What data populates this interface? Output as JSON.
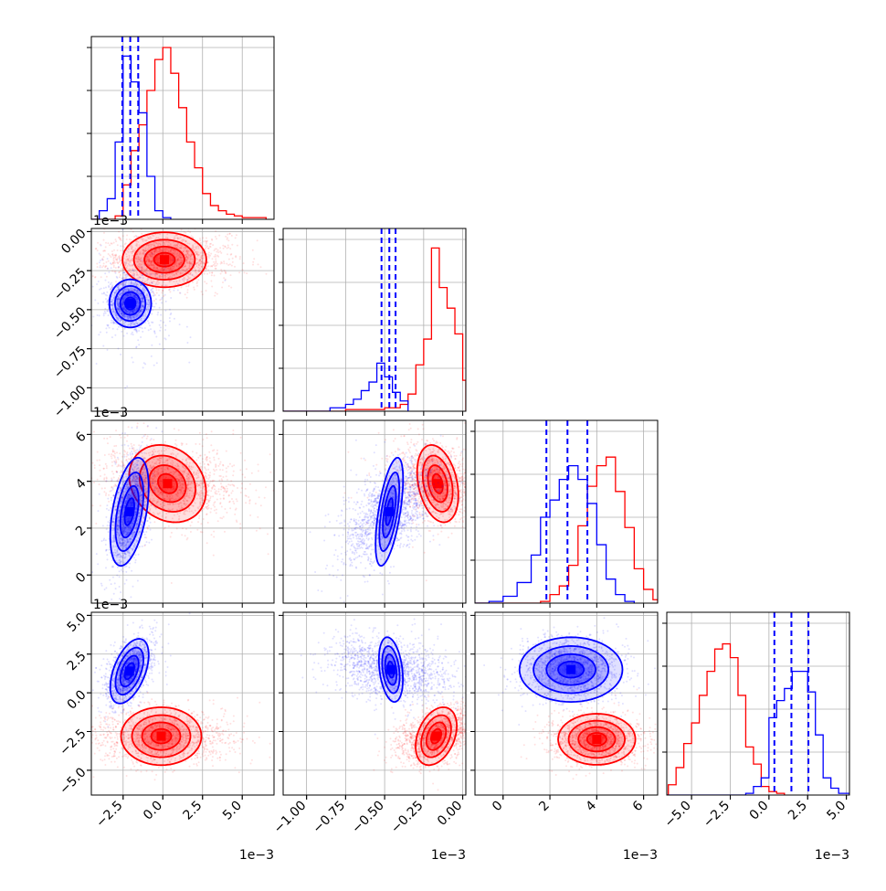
{
  "chart_data": {
    "type": "corner",
    "series": [
      {
        "color": "#0000ff"
      },
      {
        "color": "#ff0000"
      }
    ],
    "colors": {
      "blue": "#0000ff",
      "red": "#ff0000",
      "grid": "#b0b0b0"
    },
    "grid": true,
    "offset_label": "1e−3",
    "parameters": [
      {
        "lim": [
          -4.5,
          7.0
        ],
        "ticks": [
          -2.5,
          0.0,
          2.5,
          5.0
        ],
        "tick_labels": [
          "−2.5",
          "0.0",
          "2.5",
          "5.0"
        ]
      },
      {
        "lim": [
          -1.15,
          0.02
        ],
        "ticks": [
          -1.0,
          -0.75,
          -0.5,
          -0.25,
          0.0
        ],
        "tick_labels": [
          "−1.00",
          "−0.75",
          "−0.50",
          "−0.25",
          "0.00"
        ]
      },
      {
        "lim": [
          -1.2,
          6.6
        ],
        "ticks": [
          0,
          2,
          4,
          6
        ],
        "tick_labels": [
          "0",
          "2",
          "4",
          "6"
        ]
      },
      {
        "lim": [
          -6.6,
          5.2
        ],
        "ticks": [
          -5.0,
          -2.5,
          0.0,
          2.5,
          5.0
        ],
        "tick_labels": [
          "−5.0",
          "−2.5",
          "0.0",
          "2.5",
          "5.0"
        ]
      }
    ],
    "quantiles_blue": [
      [
        -2.55,
        -2.05,
        -1.55
      ],
      [
        -0.52,
        -0.47,
        -0.43
      ],
      [
        1.85,
        2.75,
        3.6
      ],
      [
        0.35,
        1.45,
        2.55
      ]
    ],
    "marginals": {
      "blue": [
        [
          [
            -4.5,
            0.0
          ],
          [
            -4.0,
            0.05
          ],
          [
            -3.5,
            0.12
          ],
          [
            -3.0,
            0.45
          ],
          [
            -2.5,
            0.95
          ],
          [
            -2.0,
            0.8
          ],
          [
            -1.5,
            0.62
          ],
          [
            -1.0,
            0.25
          ],
          [
            -0.5,
            0.05
          ],
          [
            0.0,
            0.01
          ],
          [
            0.5,
            0.0
          ]
        ],
        [
          [
            -1.15,
            0.0
          ],
          [
            -0.95,
            0.0
          ],
          [
            -0.85,
            0.02
          ],
          [
            -0.75,
            0.04
          ],
          [
            -0.7,
            0.07
          ],
          [
            -0.65,
            0.12
          ],
          [
            -0.6,
            0.17
          ],
          [
            -0.55,
            0.28
          ],
          [
            -0.5,
            0.2
          ],
          [
            -0.45,
            0.11
          ],
          [
            -0.4,
            0.06
          ],
          [
            -0.35,
            0.0
          ]
        ],
        [
          [
            -1.2,
            0.0
          ],
          [
            -0.6,
            0.01
          ],
          [
            0.0,
            0.04
          ],
          [
            0.6,
            0.12
          ],
          [
            1.2,
            0.28
          ],
          [
            1.6,
            0.5
          ],
          [
            2.0,
            0.6
          ],
          [
            2.4,
            0.72
          ],
          [
            2.8,
            0.8
          ],
          [
            3.2,
            0.72
          ],
          [
            3.6,
            0.58
          ],
          [
            4.0,
            0.34
          ],
          [
            4.4,
            0.14
          ],
          [
            4.8,
            0.05
          ],
          [
            5.2,
            0.01
          ],
          [
            5.6,
            0.0
          ]
        ],
        [
          [
            -6.6,
            0.0
          ],
          [
            -1.5,
            0.01
          ],
          [
            -1.0,
            0.05
          ],
          [
            -0.5,
            0.1
          ],
          [
            0.0,
            0.45
          ],
          [
            0.5,
            0.55
          ],
          [
            1.0,
            0.62
          ],
          [
            1.5,
            0.72
          ],
          [
            2.0,
            0.72
          ],
          [
            2.5,
            0.6
          ],
          [
            3.0,
            0.35
          ],
          [
            3.5,
            0.1
          ],
          [
            4.0,
            0.04
          ],
          [
            4.5,
            0.01
          ],
          [
            5.2,
            0.0
          ]
        ]
      ],
      "red": [
        [
          [
            -4.5,
            0.0
          ],
          [
            -3.0,
            0.02
          ],
          [
            -2.5,
            0.2
          ],
          [
            -2.0,
            0.4
          ],
          [
            -1.5,
            0.55
          ],
          [
            -1.0,
            0.75
          ],
          [
            -0.5,
            0.93
          ],
          [
            0.0,
            1.0
          ],
          [
            0.5,
            0.85
          ],
          [
            1.0,
            0.65
          ],
          [
            1.5,
            0.45
          ],
          [
            2.0,
            0.3
          ],
          [
            2.5,
            0.15
          ],
          [
            3.0,
            0.08
          ],
          [
            3.5,
            0.05
          ],
          [
            4.0,
            0.03
          ],
          [
            4.5,
            0.02
          ],
          [
            5.0,
            0.01
          ],
          [
            5.5,
            0.01
          ],
          [
            6.5,
            0.0
          ]
        ],
        [
          [
            -1.15,
            0.0
          ],
          [
            -0.9,
            0.0
          ],
          [
            -0.75,
            0.01
          ],
          [
            -0.5,
            0.02
          ],
          [
            -0.4,
            0.04
          ],
          [
            -0.35,
            0.1
          ],
          [
            -0.3,
            0.27
          ],
          [
            -0.25,
            0.42
          ],
          [
            -0.2,
            0.95
          ],
          [
            -0.15,
            0.72
          ],
          [
            -0.1,
            0.6
          ],
          [
            -0.05,
            0.45
          ],
          [
            0.0,
            0.18
          ],
          [
            0.02,
            0.0
          ]
        ],
        [
          [
            -1.2,
            0.0
          ],
          [
            1.6,
            0.01
          ],
          [
            2.0,
            0.05
          ],
          [
            2.4,
            0.1
          ],
          [
            2.8,
            0.22
          ],
          [
            3.2,
            0.45
          ],
          [
            3.6,
            0.68
          ],
          [
            4.0,
            0.8
          ],
          [
            4.4,
            0.85
          ],
          [
            4.8,
            0.65
          ],
          [
            5.2,
            0.44
          ],
          [
            5.6,
            0.2
          ],
          [
            6.0,
            0.08
          ],
          [
            6.4,
            0.02
          ],
          [
            6.6,
            0.0
          ]
        ],
        [
          [
            -6.6,
            0.0
          ],
          [
            -6.5,
            0.06
          ],
          [
            -6.0,
            0.16
          ],
          [
            -5.5,
            0.3
          ],
          [
            -5.0,
            0.42
          ],
          [
            -4.5,
            0.58
          ],
          [
            -4.0,
            0.72
          ],
          [
            -3.5,
            0.85
          ],
          [
            -3.0,
            0.88
          ],
          [
            -2.5,
            0.8
          ],
          [
            -2.0,
            0.58
          ],
          [
            -1.5,
            0.28
          ],
          [
            -1.0,
            0.18
          ],
          [
            -0.5,
            0.05
          ],
          [
            0.0,
            0.02
          ],
          [
            0.5,
            0.01
          ],
          [
            1.0,
            0.0
          ]
        ]
      ]
    },
    "joint": {
      "blue": [
        {
          "row": 1,
          "col": 0,
          "mx": -2.05,
          "my": -0.46,
          "sx": 0.6,
          "sy": 0.07,
          "rho": 0.0,
          "spread": [
            1.0,
            1.0,
            2.6
          ]
        },
        {
          "row": 2,
          "col": 0,
          "mx": -2.1,
          "my": 2.7,
          "sx": 0.55,
          "sy": 1.05,
          "rho": 0.45,
          "spread": [
            1.0,
            1.0,
            1.6
          ]
        },
        {
          "row": 2,
          "col": 1,
          "mx": -0.47,
          "my": 2.7,
          "sx": 0.04,
          "sy": 1.05,
          "rho": 0.6,
          "spread": [
            3.5,
            1.0,
            1.5
          ]
        },
        {
          "row": 3,
          "col": 0,
          "mx": -2.1,
          "my": 1.4,
          "sx": 0.55,
          "sy": 0.95,
          "rho": 0.5,
          "spread": [
            1.2,
            1.0,
            1.5
          ]
        },
        {
          "row": 3,
          "col": 1,
          "mx": -0.46,
          "my": 1.5,
          "sx": 0.035,
          "sy": 0.95,
          "rho": -0.3,
          "spread": [
            5.0,
            1.0,
            1.4
          ]
        },
        {
          "row": 3,
          "col": 2,
          "mx": 2.9,
          "my": 1.5,
          "sx": 1.0,
          "sy": 0.95,
          "rho": 0.0,
          "spread": [
            1.0,
            1.0,
            1.4
          ]
        }
      ],
      "red": [
        {
          "row": 1,
          "col": 0,
          "mx": 0.1,
          "my": -0.18,
          "sx": 1.2,
          "sy": 0.08,
          "rho": 0.0,
          "spread": [
            1.5,
            1.0,
            1.5
          ]
        },
        {
          "row": 2,
          "col": 0,
          "mx": 0.3,
          "my": 3.9,
          "sx": 1.1,
          "sy": 0.75,
          "rho": -0.2,
          "spread": [
            1.8,
            1.0,
            1.7
          ]
        },
        {
          "row": 2,
          "col": 1,
          "mx": -0.16,
          "my": 3.9,
          "sx": 0.06,
          "sy": 0.75,
          "rho": -0.3,
          "spread": [
            2.0,
            1.0,
            1.8
          ]
        },
        {
          "row": 3,
          "col": 0,
          "mx": -0.1,
          "my": -2.8,
          "sx": 1.15,
          "sy": 0.85,
          "rho": 0.0,
          "spread": [
            1.8,
            1.0,
            1.2
          ]
        },
        {
          "row": 3,
          "col": 1,
          "mx": -0.17,
          "my": -2.8,
          "sx": 0.06,
          "sy": 0.85,
          "rho": 0.35,
          "spread": [
            2.0,
            1.0,
            1.3
          ]
        },
        {
          "row": 3,
          "col": 2,
          "mx": 4.0,
          "my": -3.0,
          "sx": 0.75,
          "sy": 0.75,
          "rho": 0.0,
          "spread": [
            1.2,
            1.0,
            1.3
          ]
        }
      ]
    }
  }
}
